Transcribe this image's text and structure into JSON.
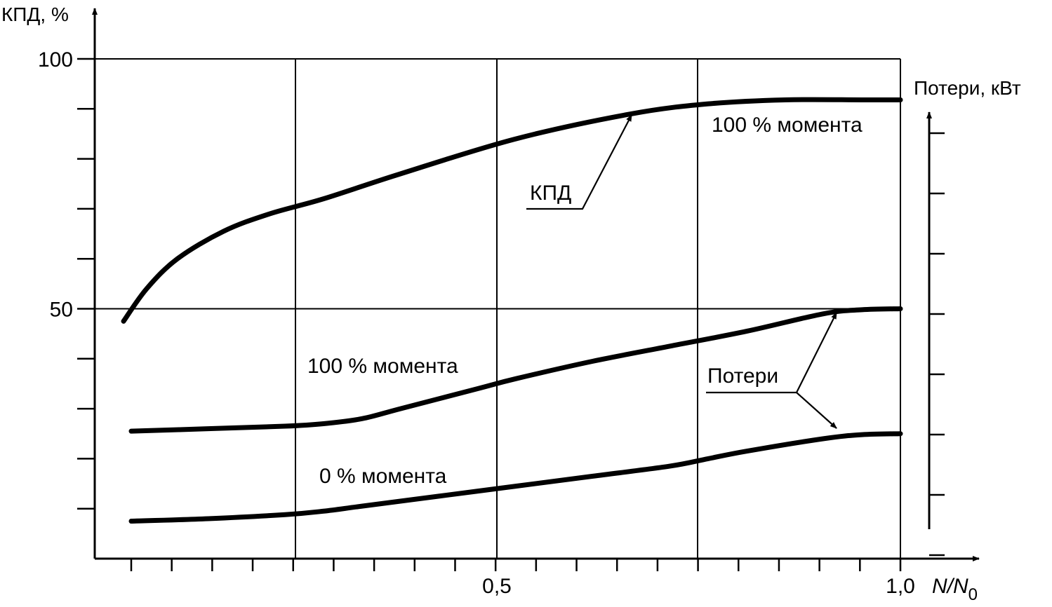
{
  "chart_data": {
    "type": "line",
    "y_axis_title": "КПД, %",
    "y2_axis_title": "Потери, кВт",
    "x_axis_title": "N/N",
    "x_axis_title_sub": "0",
    "x_range": [
      0,
      1.0
    ],
    "y_range": [
      0,
      100
    ],
    "y_tick_labels": [
      {
        "value": 100,
        "label": "100"
      },
      {
        "value": 50,
        "label": "50"
      }
    ],
    "x_tick_labels": [
      {
        "value": 0.5,
        "label": "0,5"
      },
      {
        "value": 1.0,
        "label": "1,0"
      }
    ],
    "x_minor_ticks": [
      0.0,
      0.05,
      0.1,
      0.15,
      0.2,
      0.25,
      0.3,
      0.35,
      0.4,
      0.45,
      0.5,
      0.55,
      0.6,
      0.65,
      0.7,
      0.75,
      0.8,
      0.85,
      0.9,
      0.95,
      1.0
    ],
    "y_minor_ticks": [
      10,
      20,
      30,
      40,
      60,
      70,
      80,
      90
    ],
    "x_gridlines": [
      0.25,
      0.5,
      0.75,
      1.0
    ],
    "y_gridlines": [
      50,
      100
    ],
    "y2_ticks": [
      10,
      22,
      34,
      46,
      58,
      70,
      82,
      94
    ],
    "grid": true,
    "series": [
      {
        "key": "efficiency",
        "x": [
          -0.01,
          0.02,
          0.06,
          0.12,
          0.18,
          0.25,
          0.35,
          0.5,
          0.65,
          0.75,
          0.85,
          0.95,
          1.0
        ],
        "y": [
          47.5,
          54,
          60,
          65.5,
          69,
          72,
          77,
          84,
          89,
          91,
          91.8,
          91.8,
          91.8
        ]
      },
      {
        "key": "losses_full_torque",
        "x": [
          0.0,
          0.1,
          0.2,
          0.25,
          0.3,
          0.35,
          0.45,
          0.5,
          0.6,
          0.7,
          0.8,
          0.9,
          0.95,
          1.0
        ],
        "y": [
          25.5,
          26,
          26.5,
          27,
          28,
          30,
          34,
          36,
          39.5,
          42.5,
          45.5,
          49,
          49.8,
          50
        ]
      },
      {
        "key": "losses_zero_torque",
        "x": [
          0.0,
          0.1,
          0.2,
          0.25,
          0.3,
          0.4,
          0.5,
          0.6,
          0.7,
          0.75,
          0.8,
          0.9,
          0.95,
          1.0
        ],
        "y": [
          7.5,
          8,
          8.8,
          9.5,
          10.5,
          12.5,
          14.5,
          16.5,
          18.5,
          20,
          21.5,
          24,
          24.8,
          25
        ]
      }
    ],
    "annotations": {
      "efficiency_label": "КПД",
      "efficiency_torque": "100 % момента",
      "losses_full_torque": "100 % момента",
      "losses_zero_torque": "0 % момента",
      "losses_label": "Потери"
    }
  }
}
